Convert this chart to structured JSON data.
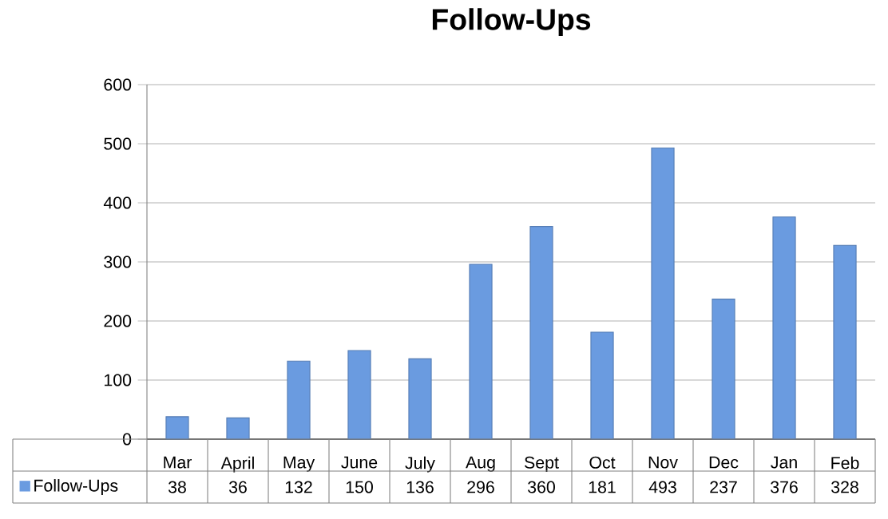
{
  "chart_data": {
    "type": "bar",
    "title": "Follow-Ups",
    "categories": [
      "Mar",
      "April",
      "May",
      "June",
      "July",
      "Aug",
      "Sept",
      "Oct",
      "Nov",
      "Dec",
      "Jan",
      "Feb"
    ],
    "series": [
      {
        "name": "Follow-Ups",
        "color": "#6a9be0",
        "values": [
          38,
          36,
          132,
          150,
          136,
          296,
          360,
          181,
          493,
          237,
          376,
          328
        ]
      }
    ],
    "ylim": [
      0,
      600
    ],
    "yticks": [
      0,
      100,
      200,
      300,
      400,
      500,
      600
    ],
    "grid": "y",
    "legend": "bottom",
    "data_labels": true
  }
}
